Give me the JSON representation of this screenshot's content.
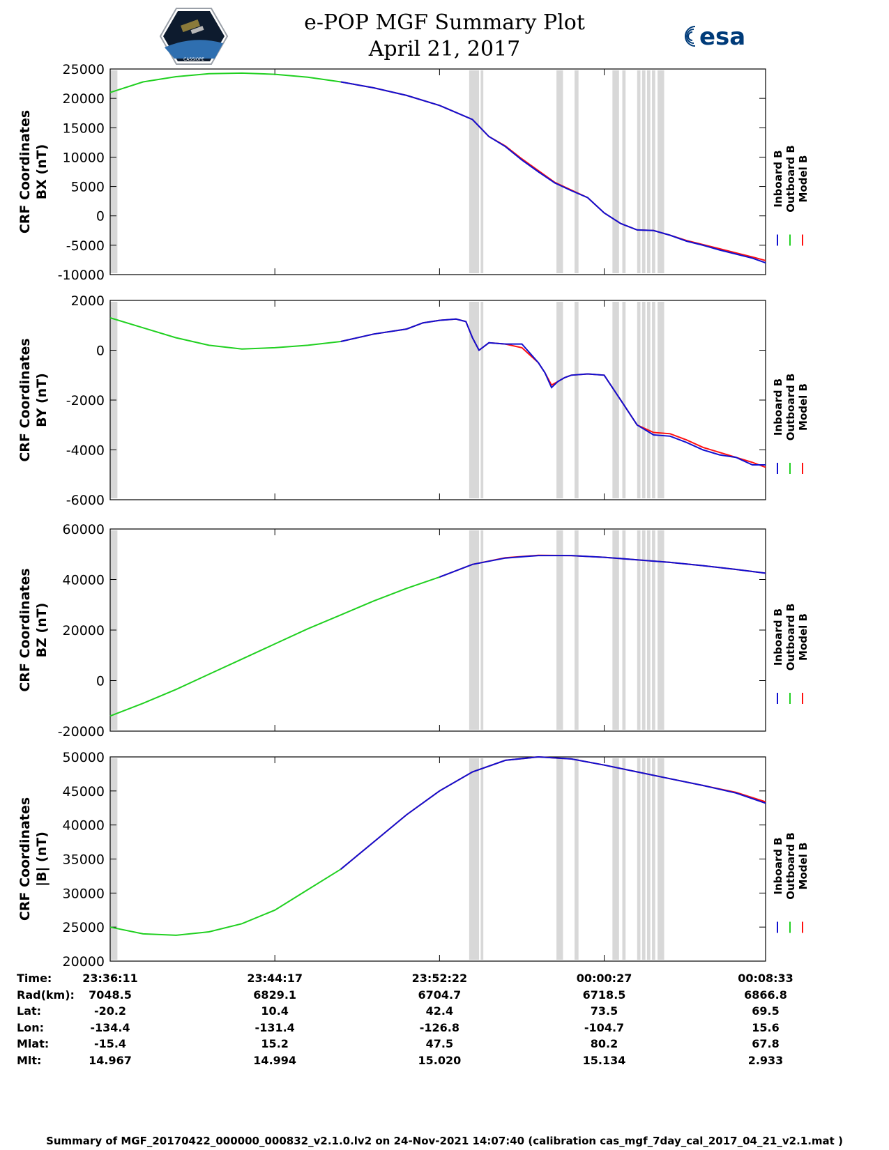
{
  "header": {
    "title_line1": "e-POP MGF Summary Plot",
    "title_line2": "April 21, 2017",
    "logo_left_text": "CASSIOPE",
    "logo_right_text": "esa"
  },
  "colors": {
    "inboard": "#1010d0",
    "outboard": "#20d020",
    "model": "#ff1010",
    "gap": "#d8d8d8"
  },
  "chart_data": [
    {
      "type": "line",
      "ylabel_line1": "CRF Coordinates",
      "ylabel_line2": "BX (nT)",
      "ylim": [
        -10000,
        25000
      ],
      "yticks": [
        -10000,
        -5000,
        0,
        5000,
        10000,
        15000,
        20000,
        25000
      ],
      "xlim": [
        0,
        1990
      ],
      "legend": [
        "Inboard B",
        "Outboard B",
        "Model B"
      ],
      "series": {
        "outboard": {
          "x": [
            0,
            100,
            200,
            300,
            400,
            500,
            600,
            700
          ],
          "values": [
            21000,
            22800,
            23700,
            24200,
            24300,
            24100,
            23600,
            22800
          ]
        },
        "inboard": {
          "x": [
            700,
            800,
            900,
            1000,
            1100,
            1150,
            1200,
            1250,
            1300,
            1350,
            1400,
            1450,
            1500,
            1550,
            1600,
            1650,
            1700,
            1750,
            1800,
            1850,
            1900,
            1950,
            1990
          ],
          "values": [
            22800,
            21800,
            20500,
            18800,
            16400,
            13500,
            11800,
            9500,
            7500,
            5600,
            4300,
            3100,
            500,
            -1300,
            -2400,
            -2500,
            -3300,
            -4300,
            -5000,
            -5800,
            -6500,
            -7200,
            -8000
          ]
        },
        "model": {
          "x": [
            700,
            800,
            900,
            1000,
            1100,
            1150,
            1200,
            1250,
            1300,
            1350,
            1400,
            1450,
            1500,
            1550,
            1600,
            1650,
            1700,
            1750,
            1800,
            1850,
            1900,
            1950,
            1990
          ],
          "values": [
            22800,
            21800,
            20500,
            18800,
            16400,
            13500,
            11900,
            9700,
            7700,
            5700,
            4400,
            3100,
            500,
            -1300,
            -2400,
            -2500,
            -3300,
            -4200,
            -4900,
            -5600,
            -6300,
            -7000,
            -7600
          ]
        }
      }
    },
    {
      "type": "line",
      "ylabel_line1": "CRF Coordinates",
      "ylabel_line2": "BY (nT)",
      "ylim": [
        -6000,
        2000
      ],
      "yticks": [
        -6000,
        -4000,
        -2000,
        0,
        2000
      ],
      "xlim": [
        0,
        1990
      ],
      "legend": [
        "Inboard B",
        "Outboard B",
        "Model B"
      ],
      "series": {
        "outboard": {
          "x": [
            0,
            100,
            200,
            300,
            400,
            500,
            600,
            700
          ],
          "values": [
            1300,
            900,
            500,
            200,
            50,
            100,
            200,
            350
          ]
        },
        "inboard": {
          "x": [
            700,
            800,
            900,
            950,
            1000,
            1050,
            1080,
            1100,
            1120,
            1150,
            1200,
            1250,
            1300,
            1320,
            1340,
            1360,
            1380,
            1400,
            1450,
            1500,
            1560,
            1600,
            1650,
            1700,
            1750,
            1800,
            1850,
            1900,
            1950,
            1990
          ],
          "values": [
            350,
            650,
            850,
            1100,
            1200,
            1250,
            1150,
            500,
            0,
            300,
            250,
            250,
            -500,
            -900,
            -1500,
            -1250,
            -1100,
            -1000,
            -950,
            -1000,
            -2200,
            -3000,
            -3400,
            -3450,
            -3700,
            -4000,
            -4200,
            -4300,
            -4600,
            -4600
          ]
        },
        "model": {
          "x": [
            700,
            800,
            900,
            950,
            1000,
            1050,
            1080,
            1100,
            1120,
            1150,
            1200,
            1250,
            1300,
            1320,
            1340,
            1360,
            1380,
            1400,
            1450,
            1500,
            1560,
            1600,
            1650,
            1700,
            1750,
            1800,
            1850,
            1900,
            1950,
            1990
          ],
          "values": [
            350,
            650,
            850,
            1100,
            1200,
            1250,
            1150,
            500,
            0,
            300,
            250,
            100,
            -500,
            -900,
            -1400,
            -1250,
            -1100,
            -1000,
            -950,
            -1000,
            -2200,
            -3000,
            -3300,
            -3350,
            -3600,
            -3900,
            -4100,
            -4300,
            -4500,
            -4700
          ]
        }
      }
    },
    {
      "type": "line",
      "ylabel_line1": "CRF Coordinates",
      "ylabel_line2": "BZ (nT)",
      "ylim": [
        -20000,
        60000
      ],
      "yticks": [
        -20000,
        0,
        20000,
        40000,
        60000
      ],
      "xlim": [
        0,
        1990
      ],
      "legend": [
        "Inboard B",
        "Outboard B",
        "Model B"
      ],
      "series": {
        "outboard": {
          "x": [
            0,
            100,
            200,
            300,
            400,
            500,
            600,
            700,
            800,
            900,
            1000
          ],
          "values": [
            -14000,
            -9000,
            -3500,
            2500,
            8500,
            14500,
            20500,
            26000,
            31500,
            36500,
            41000
          ]
        },
        "inboard": {
          "x": [
            1000,
            1100,
            1200,
            1300,
            1400,
            1500,
            1600,
            1700,
            1800,
            1900,
            1990
          ],
          "values": [
            41000,
            46000,
            48500,
            49500,
            49500,
            48800,
            47800,
            46800,
            45500,
            44000,
            42500
          ]
        },
        "model": {
          "x": [
            1000,
            1100,
            1200,
            1300,
            1400,
            1500,
            1600,
            1700,
            1800,
            1900,
            1990
          ],
          "values": [
            41000,
            46000,
            48600,
            49600,
            49500,
            48800,
            47800,
            46800,
            45500,
            44000,
            42500
          ]
        }
      }
    },
    {
      "type": "line",
      "ylabel_line1": "CRF Coordinates",
      "ylabel_line2": "|B| (nT)",
      "ylim": [
        20000,
        50000
      ],
      "yticks": [
        20000,
        25000,
        30000,
        35000,
        40000,
        45000,
        50000
      ],
      "xlim": [
        0,
        1990
      ],
      "legend": [
        "Inboard B",
        "Outboard B",
        "Model B"
      ],
      "series": {
        "outboard": {
          "x": [
            0,
            100,
            200,
            300,
            400,
            500,
            600,
            700
          ],
          "values": [
            25000,
            24000,
            23800,
            24300,
            25500,
            27500,
            30500,
            33500
          ]
        },
        "inboard": {
          "x": [
            700,
            800,
            900,
            1000,
            1100,
            1200,
            1300,
            1400,
            1500,
            1600,
            1700,
            1800,
            1900,
            1990
          ],
          "values": [
            33500,
            37500,
            41500,
            45000,
            47800,
            49500,
            50000,
            49700,
            48800,
            47800,
            46800,
            45800,
            44700,
            43200
          ]
        },
        "model": {
          "x": [
            700,
            800,
            900,
            1000,
            1100,
            1200,
            1300,
            1400,
            1500,
            1600,
            1700,
            1800,
            1900,
            1990
          ],
          "values": [
            33500,
            37500,
            41500,
            45000,
            47800,
            49500,
            50000,
            49700,
            48800,
            47800,
            46800,
            45800,
            44800,
            43400
          ]
        }
      }
    }
  ],
  "gaps": [
    [
      0,
      22
    ],
    [
      1090,
      1120
    ],
    [
      1125,
      1133
    ],
    [
      1355,
      1375
    ],
    [
      1410,
      1422
    ],
    [
      1525,
      1545
    ],
    [
      1555,
      1565
    ],
    [
      1600,
      1610
    ],
    [
      1615,
      1625
    ],
    [
      1630,
      1640
    ],
    [
      1645,
      1655
    ],
    [
      1662,
      1682
    ]
  ],
  "x_info": {
    "labels": [
      "Time:",
      "Rad(km):",
      "Lat:",
      "Lon:",
      "Mlat:",
      "Mlt:"
    ],
    "columns": [
      {
        "x": 0,
        "values": [
          "23:36:11",
          "7048.5",
          "-20.2",
          "-134.4",
          "-15.4",
          "14.967"
        ]
      },
      {
        "x": 500,
        "values": [
          "23:44:17",
          "6829.1",
          "10.4",
          "-131.4",
          "15.2",
          "14.994"
        ]
      },
      {
        "x": 1000,
        "values": [
          "23:52:22",
          "6704.7",
          "42.4",
          "-126.8",
          "47.5",
          "15.020"
        ]
      },
      {
        "x": 1500,
        "values": [
          "00:00:27",
          "6718.5",
          "73.5",
          "-104.7",
          "80.2",
          "15.134"
        ]
      },
      {
        "x": 1990,
        "values": [
          "00:08:33",
          "6866.8",
          "69.5",
          "15.6",
          "67.8",
          "2.933"
        ]
      }
    ]
  },
  "footer": "Summary of MGF_20170422_000000_000832_v2.1.0.lv2 on 24-Nov-2021 14:07:40 (calibration cas_mgf_7day_cal_2017_04_21_v2.1.mat )"
}
